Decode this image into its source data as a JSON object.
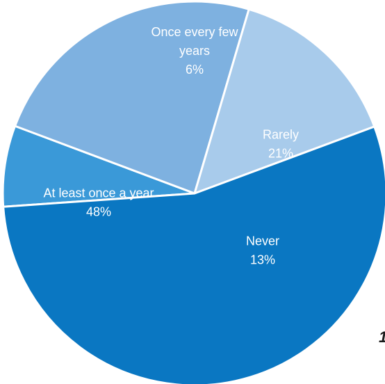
{
  "chart_data": {
    "type": "pie",
    "slices": [
      {
        "label": "Once every few years",
        "label_lines": [
          "Once every few",
          "years"
        ],
        "value": 6,
        "value_label": "6%",
        "color": "#3a99d8"
      },
      {
        "label": "Rarely",
        "label_lines": [
          "Rarely"
        ],
        "value": 21,
        "value_label": "21%",
        "color": "#7eb1e0"
      },
      {
        "label": "Never",
        "label_lines": [
          "Never"
        ],
        "value": 13,
        "value_label": "13%",
        "color": "#a8cbeb"
      },
      {
        "label": "At least once a year",
        "label_lines": [
          "At least once a year"
        ],
        "value": 48,
        "value_label": "48%",
        "color": "#0a77c2"
      }
    ],
    "slice_border_color": "#ffffff",
    "label_color": "#ffffff",
    "edge_text": "1"
  }
}
